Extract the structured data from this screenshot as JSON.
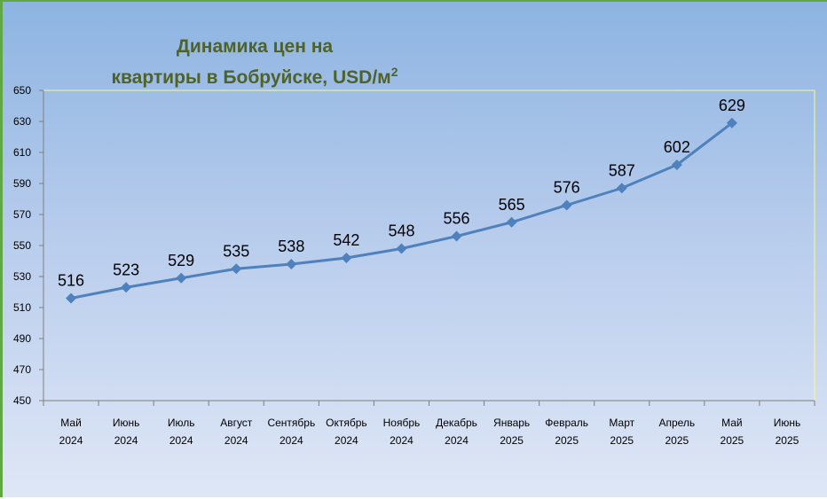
{
  "chart_data": {
    "type": "line",
    "title_line1": "Динамика цен на",
    "title_line2": "квартиры в Бобруйске, USD/м",
    "title_superscript": "2",
    "categories": [
      [
        "Май",
        "2024"
      ],
      [
        "Июнь",
        "2024"
      ],
      [
        "Июль",
        "2024"
      ],
      [
        "Август",
        "2024"
      ],
      [
        "Сентябрь",
        "2024"
      ],
      [
        "Октябрь",
        "2024"
      ],
      [
        "Ноябрь",
        "2024"
      ],
      [
        "Декабрь",
        "2024"
      ],
      [
        "Январь",
        "2025"
      ],
      [
        "Февраль",
        "2025"
      ],
      [
        "Март",
        "2025"
      ],
      [
        "Апрель",
        "2025"
      ],
      [
        "Май",
        "2025"
      ],
      [
        "Июнь",
        "2025"
      ]
    ],
    "values": [
      516,
      523,
      529,
      535,
      538,
      542,
      548,
      556,
      565,
      576,
      587,
      602,
      629,
      null
    ],
    "ylim": [
      450,
      650
    ],
    "yticks": [
      450,
      470,
      490,
      510,
      530,
      550,
      570,
      590,
      610,
      630,
      650
    ],
    "xlabel": "",
    "ylabel": "",
    "series_color": "#4f81bd",
    "plot_border_color": "#ffff66",
    "grid": false
  }
}
